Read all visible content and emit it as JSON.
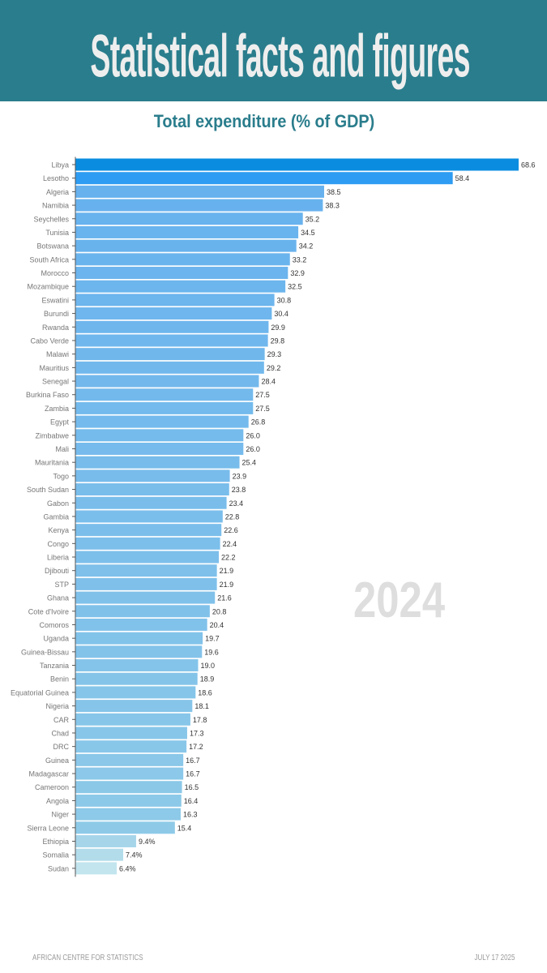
{
  "header": {
    "title": "Statistical facts and figures"
  },
  "footer": {
    "left": "AFRICAN CENTRE FOR STATISTICS",
    "right": "JULY 17 2025"
  },
  "chart_data": {
    "type": "bar",
    "orientation": "horizontal",
    "title": "Total expenditure (% of GDP)",
    "annotation": "2024",
    "xlabel": "",
    "ylabel": "",
    "xlim": [
      0,
      68.6
    ],
    "grid": false,
    "categories": [
      "Libya",
      "Lesotho",
      "Algeria",
      "Namibia",
      "Seychelles",
      "Tunisia",
      "Botswana",
      "South Africa",
      "Morocco",
      "Mozambique",
      "Eswatini",
      "Burundi",
      "Rwanda",
      "Cabo Verde",
      "Malawi",
      "Mauritius",
      "Senegal",
      "Burkina Faso",
      "Zambia",
      "Egypt",
      "Zimbabwe",
      "Mali",
      "Mauritania",
      "Togo",
      "South Sudan",
      "Gabon",
      "Gambia",
      "Kenya",
      "Congo",
      "Liberia",
      "Djibouti",
      "STP",
      "Ghana",
      "Cote d'Ivoire",
      "Comoros",
      "Uganda",
      "Guinea-Bissau",
      "Tanzania",
      "Benin",
      "Equatorial Guinea",
      "Nigeria",
      "CAR",
      "Chad",
      "DRC",
      "Guinea",
      "Madagascar",
      "Cameroon",
      "Angola",
      "Niger",
      "Sierra Leone",
      "Ethiopia",
      "Somalia",
      "Sudan"
    ],
    "values": [
      68.6,
      58.4,
      38.5,
      38.3,
      35.2,
      34.5,
      34.2,
      33.2,
      32.9,
      32.5,
      30.8,
      30.4,
      29.9,
      29.8,
      29.3,
      29.2,
      28.4,
      27.5,
      27.5,
      26.8,
      26.0,
      26.0,
      25.4,
      23.9,
      23.8,
      23.4,
      22.8,
      22.6,
      22.4,
      22.2,
      21.9,
      21.9,
      21.6,
      20.8,
      20.4,
      19.7,
      19.6,
      19.0,
      18.9,
      18.6,
      18.1,
      17.8,
      17.3,
      17.2,
      16.7,
      16.7,
      16.5,
      16.4,
      16.3,
      15.4,
      9.4,
      7.4,
      6.4
    ],
    "data_labels": [
      "68.6",
      "58.4",
      "38.5",
      "38.3",
      "35.2",
      "34.5",
      "34.2",
      "33.2",
      "32.9",
      "32.5",
      "30.8",
      "30.4",
      "29.9",
      "29.8",
      "29.3",
      "29.2",
      "28.4",
      "27.5",
      "27.5",
      "26.8",
      "26.0",
      "26.0",
      "25.4",
      "23.9",
      "23.8",
      "23.4",
      "22.8",
      "22.6",
      "22.4",
      "22.2",
      "21.9",
      "21.9",
      "21.6",
      "20.8",
      "20.4",
      "19.7",
      "19.6",
      "19.0",
      "18.9",
      "18.6",
      "18.1",
      "17.8",
      "17.3",
      "17.2",
      "16.7",
      "16.7",
      "16.5",
      "16.4",
      "16.3",
      "15.4",
      "9.4%",
      "7.4%",
      "6.4%"
    ],
    "colors": {
      "top1": "#0a8de0",
      "top2": "#2e9cf2",
      "high": "#66b1ee",
      "low": "#8ecae8",
      "ethiopia": "#a6d5ea",
      "somalia": "#b2dcea",
      "sudan": "#c2e5ee",
      "axis": "#555555",
      "label": "#777777",
      "value": "#333333"
    }
  }
}
